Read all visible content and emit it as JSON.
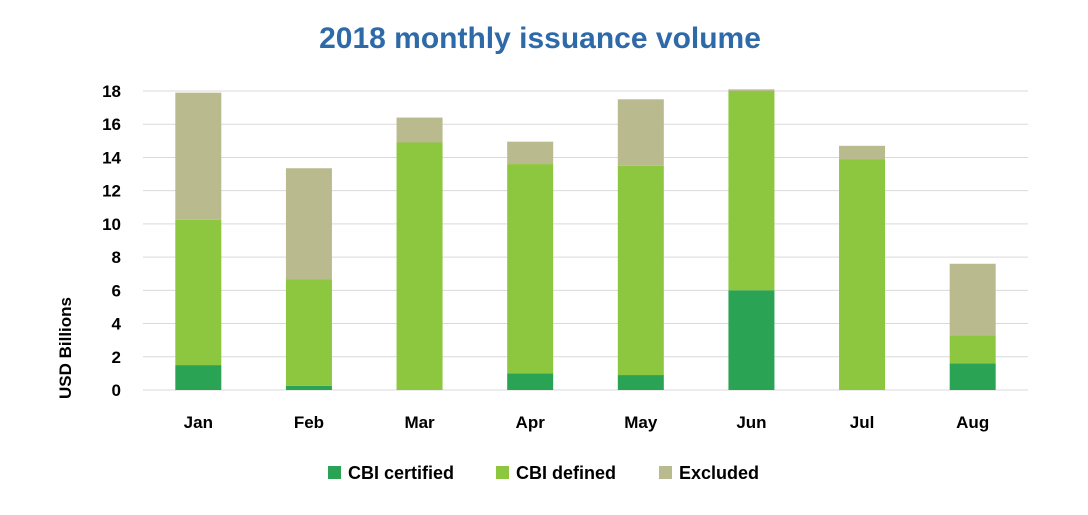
{
  "chart_data": {
    "type": "bar",
    "stacked": true,
    "title": "2018 monthly issuance volume",
    "xlabel": "",
    "ylabel": "USD Billions",
    "ylim": [
      0,
      18
    ],
    "yticks": [
      0,
      2,
      4,
      6,
      8,
      10,
      12,
      14,
      16,
      18
    ],
    "grid": true,
    "legend_position": "bottom",
    "categories": [
      "Jan",
      "Feb",
      "Mar",
      "Apr",
      "May",
      "Jun",
      "Jul",
      "Aug"
    ],
    "series": [
      {
        "name": "CBI certified",
        "color": "#2ba354",
        "values": [
          1.5,
          0.25,
          0,
          1.0,
          0.9,
          6.0,
          0,
          1.6
        ]
      },
      {
        "name": "CBI defined",
        "color": "#8dc63f",
        "values": [
          8.75,
          6.4,
          14.9,
          12.6,
          12.6,
          12.0,
          13.9,
          1.7
        ]
      },
      {
        "name": "Excluded",
        "color": "#b9ba8d",
        "values": [
          7.65,
          6.7,
          1.5,
          1.35,
          4.0,
          0.1,
          0.8,
          4.3
        ]
      }
    ]
  }
}
